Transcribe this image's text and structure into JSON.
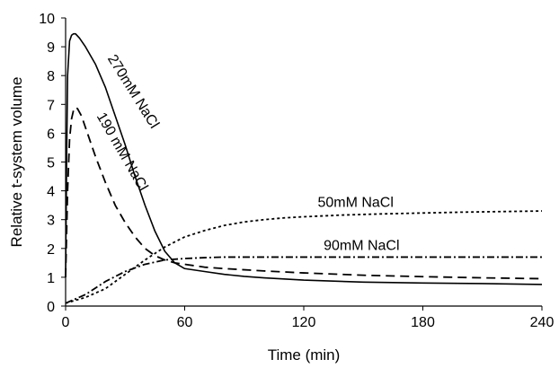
{
  "chart_data": {
    "type": "line",
    "xlabel": "Time (min)",
    "ylabel": "Relative t-system volume",
    "xlim": [
      0,
      240
    ],
    "ylim": [
      0,
      10
    ],
    "xticks": [
      0,
      60,
      120,
      180,
      240
    ],
    "yticks": [
      0,
      1,
      2,
      3,
      4,
      5,
      6,
      7,
      8,
      9,
      10
    ],
    "grid": false,
    "legend": "none",
    "series": [
      {
        "name": "270mM NaCl",
        "style": "solid",
        "x": [
          0,
          0.5,
          1,
          2,
          3,
          4,
          5,
          7,
          10,
          15,
          20,
          25,
          30,
          35,
          40,
          45,
          50,
          55,
          60,
          70,
          80,
          90,
          100,
          120,
          150,
          180,
          210,
          240
        ],
        "y": [
          1,
          5,
          8,
          9.2,
          9.4,
          9.45,
          9.45,
          9.3,
          9.0,
          8.4,
          7.6,
          6.6,
          5.6,
          4.5,
          3.5,
          2.6,
          1.9,
          1.5,
          1.3,
          1.2,
          1.1,
          1.03,
          0.98,
          0.9,
          0.83,
          0.8,
          0.78,
          0.75
        ]
      },
      {
        "name": "190 mM NaCl",
        "style": "dashed",
        "x": [
          0,
          0.5,
          1,
          2,
          3,
          4,
          5,
          6,
          8,
          10,
          15,
          20,
          25,
          30,
          35,
          40,
          45,
          50,
          55,
          60,
          70,
          80,
          100,
          120,
          150,
          180,
          210,
          240
        ],
        "y": [
          1,
          2.5,
          4,
          5.8,
          6.5,
          6.8,
          6.9,
          6.85,
          6.6,
          6.2,
          5.2,
          4.3,
          3.5,
          2.9,
          2.4,
          2.0,
          1.75,
          1.6,
          1.5,
          1.45,
          1.35,
          1.3,
          1.22,
          1.15,
          1.07,
          1.02,
          0.98,
          0.95
        ]
      },
      {
        "name": "50mM NaCl",
        "style": "dotted",
        "x": [
          0,
          10,
          20,
          30,
          40,
          50,
          60,
          70,
          80,
          90,
          100,
          110,
          120,
          140,
          160,
          180,
          200,
          220,
          240
        ],
        "y": [
          0.1,
          0.3,
          0.6,
          1.1,
          1.6,
          2.05,
          2.4,
          2.62,
          2.8,
          2.92,
          3.0,
          3.06,
          3.1,
          3.16,
          3.2,
          3.23,
          3.26,
          3.28,
          3.3
        ]
      },
      {
        "name": "90mM NaCl",
        "style": "dashdot",
        "x": [
          0,
          10,
          20,
          30,
          40,
          50,
          60,
          70,
          80,
          100,
          120,
          150,
          180,
          210,
          240
        ],
        "y": [
          0.1,
          0.4,
          0.85,
          1.2,
          1.45,
          1.6,
          1.65,
          1.68,
          1.7,
          1.7,
          1.7,
          1.7,
          1.7,
          1.7,
          1.7
        ]
      }
    ],
    "annotations": [
      {
        "text": "270mM NaCl",
        "series": 0,
        "x": 21,
        "y": 8.6,
        "rotate": 58
      },
      {
        "text": "190 mM NaCl",
        "series": 1,
        "x": 15.5,
        "y": 6.6,
        "rotate": 60
      },
      {
        "text": "50mM NaCl",
        "series": 2,
        "x": 127,
        "y": 3.45,
        "rotate": 0
      },
      {
        "text": "90mM NaCl",
        "series": 3,
        "x": 130,
        "y": 1.95,
        "rotate": 0
      }
    ]
  }
}
